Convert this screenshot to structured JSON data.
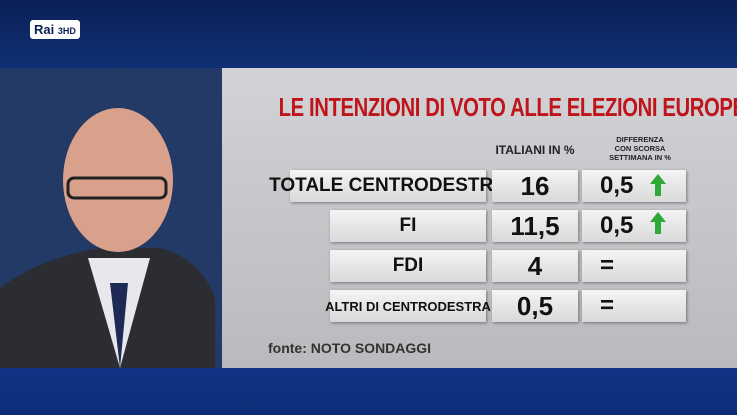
{
  "logo": {
    "brand": "Rai",
    "channel": "3HD"
  },
  "graphic": {
    "title": "LE INTENZIONI DI VOTO ALLE ELEZIONI EUROPEE",
    "headers": {
      "value": "ITALIANI IN %",
      "diff": [
        "DIFFERENZA",
        "CON SCORSA",
        "SETTIMANA IN %"
      ]
    },
    "rows": [
      {
        "label": "TOTALE CENTRODESTRA",
        "value": "16",
        "diff": "0,5"
      },
      {
        "label": "FI",
        "value": "11,5",
        "diff": "0,5"
      },
      {
        "label": "FDI",
        "value": "4",
        "diff": "="
      },
      {
        "label": "ALTRI DI CENTRODESTRA",
        "value": "0,5",
        "diff": "="
      }
    ],
    "source": "fonte: NOTO SONDAGGI"
  }
}
